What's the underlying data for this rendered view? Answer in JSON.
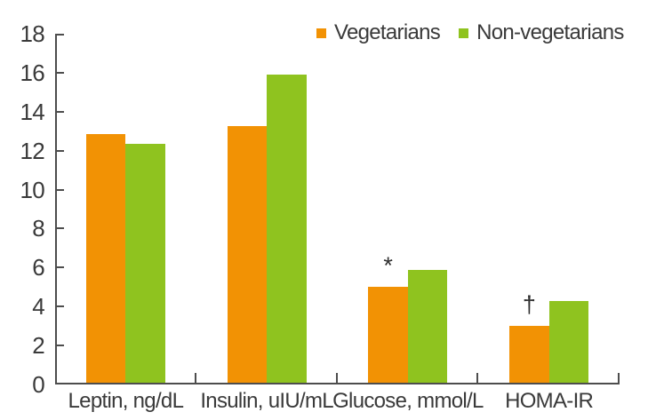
{
  "figure": {
    "background": "#ffffff",
    "text_color": "#3a3a3a",
    "axis_color": "#4d4d4d"
  },
  "legend": {
    "position": "top-right",
    "items": [
      {
        "label": "Vegetarians",
        "color": "#F29204",
        "swatch": "orange-square-icon"
      },
      {
        "label": "Non-vegetarians",
        "color": "#8FC31F",
        "swatch": "green-square-icon"
      }
    ]
  },
  "chart_data": {
    "type": "bar",
    "categories": [
      "Leptin, ng/dL",
      "Insulin, uIU/mL",
      "Glucose, mmol/L",
      "HOMA-IR"
    ],
    "series": [
      {
        "name": "Vegetarians",
        "color": "#F29204",
        "values": [
          12.85,
          13.25,
          5.0,
          3.0
        ]
      },
      {
        "name": "Non-vegetarians",
        "color": "#8FC31F",
        "values": [
          12.35,
          15.9,
          5.9,
          4.3
        ]
      }
    ],
    "title": "",
    "xlabel": "",
    "ylabel": "",
    "ylim": [
      0,
      18
    ],
    "yticks": [
      0,
      2,
      4,
      6,
      8,
      10,
      12,
      14,
      16,
      18
    ],
    "grid": false,
    "legend_position": "top-right",
    "annotations": [
      {
        "category": "Glucose, mmol/L",
        "series": "Vegetarians",
        "symbol": "*"
      },
      {
        "category": "HOMA-IR",
        "series": "Vegetarians",
        "symbol": "†"
      }
    ]
  }
}
